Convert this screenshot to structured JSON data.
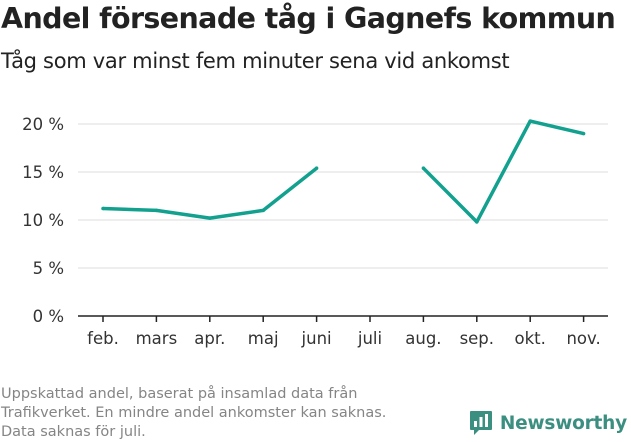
{
  "title": "Andel försenade tåg i Gagnefs kommun",
  "subtitle": "Tåg som var minst fem minuter sena vid ankomst",
  "note_lines": [
    "Uppskattad andel, baserat på insamlad data från",
    "Trafikverket. En mindre andel ankomster kan saknas.",
    "Data saknas för juli."
  ],
  "logo": {
    "text": "Newsworthy",
    "icon": "bar-chart-speech-bubble-icon",
    "color": "#3b8f80"
  },
  "colors": {
    "line": "#12a08f",
    "grid": "#dddddd",
    "axis": "#222222",
    "tick_text": "#333333",
    "note_text": "#858585"
  },
  "chart_data": {
    "type": "line",
    "title": "Andel försenade tåg i Gagnefs kommun",
    "subtitle": "Tåg som var minst fem minuter sena vid ankomst",
    "xlabel": "",
    "ylabel": "",
    "categories": [
      "feb.",
      "mars",
      "apr.",
      "maj",
      "juni",
      "juli",
      "aug.",
      "sep.",
      "okt.",
      "nov."
    ],
    "values": [
      11.2,
      11.0,
      10.2,
      11.0,
      15.4,
      null,
      15.4,
      9.8,
      20.3,
      19.0
    ],
    "ylim": [
      0,
      20
    ],
    "yticks": [
      0,
      5,
      10,
      15,
      20
    ],
    "ytick_labels": [
      "0 %",
      "5 %",
      "10 %",
      "15 %",
      "20 %"
    ],
    "grid": true,
    "legend": "none"
  }
}
